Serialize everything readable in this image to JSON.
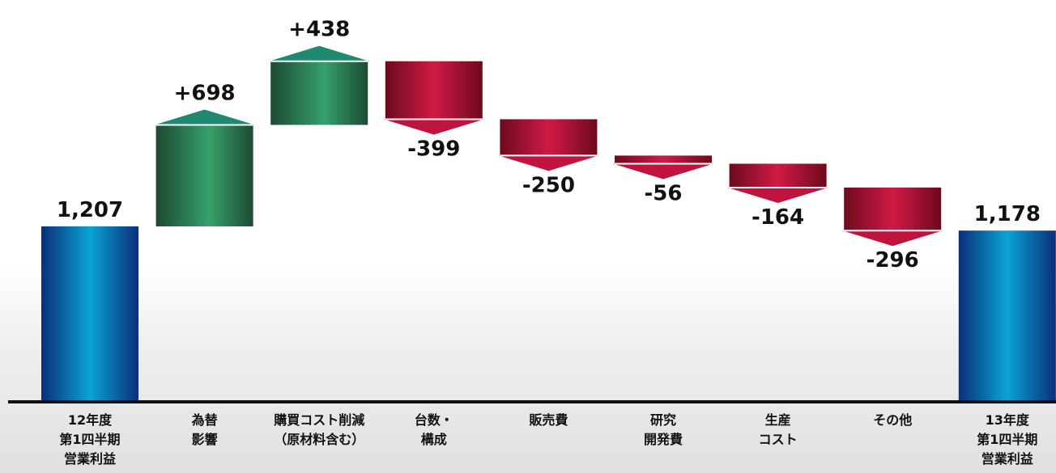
{
  "chart_data": {
    "type": "bar",
    "subtype": "waterfall",
    "title": "",
    "xlabel": "",
    "ylabel": "",
    "categories": [
      [
        "12年度",
        "第1四半期",
        "営業利益"
      ],
      [
        "為替",
        "影響"
      ],
      [
        "購買コスト削減",
        "（原材料含む）"
      ],
      [
        "台数・",
        "構成"
      ],
      [
        "販売費"
      ],
      [
        "研究",
        "開発費"
      ],
      [
        "生産",
        "コスト"
      ],
      [
        "その他"
      ],
      [
        "13年度",
        "第1四半期",
        "営業利益"
      ]
    ],
    "values": [
      1207,
      698,
      438,
      -399,
      -250,
      -56,
      -164,
      -296,
      1178
    ],
    "value_labels": [
      "1,207",
      "+698",
      "+438",
      "-399",
      "-250",
      "-56",
      "-164",
      "-296",
      "1,178"
    ],
    "kinds": [
      "total",
      "delta",
      "delta",
      "delta",
      "delta",
      "delta",
      "delta",
      "delta",
      "total"
    ],
    "ylim": [
      0,
      2400
    ],
    "colors": {
      "total": "#0a7fc0",
      "increase": "#2e8b57",
      "decrease": "#b0103a",
      "arrow_up": "#1f8a6f",
      "arrow_down": "#c0143f",
      "axis": "#111111"
    },
    "grid": false,
    "legend": "none"
  }
}
